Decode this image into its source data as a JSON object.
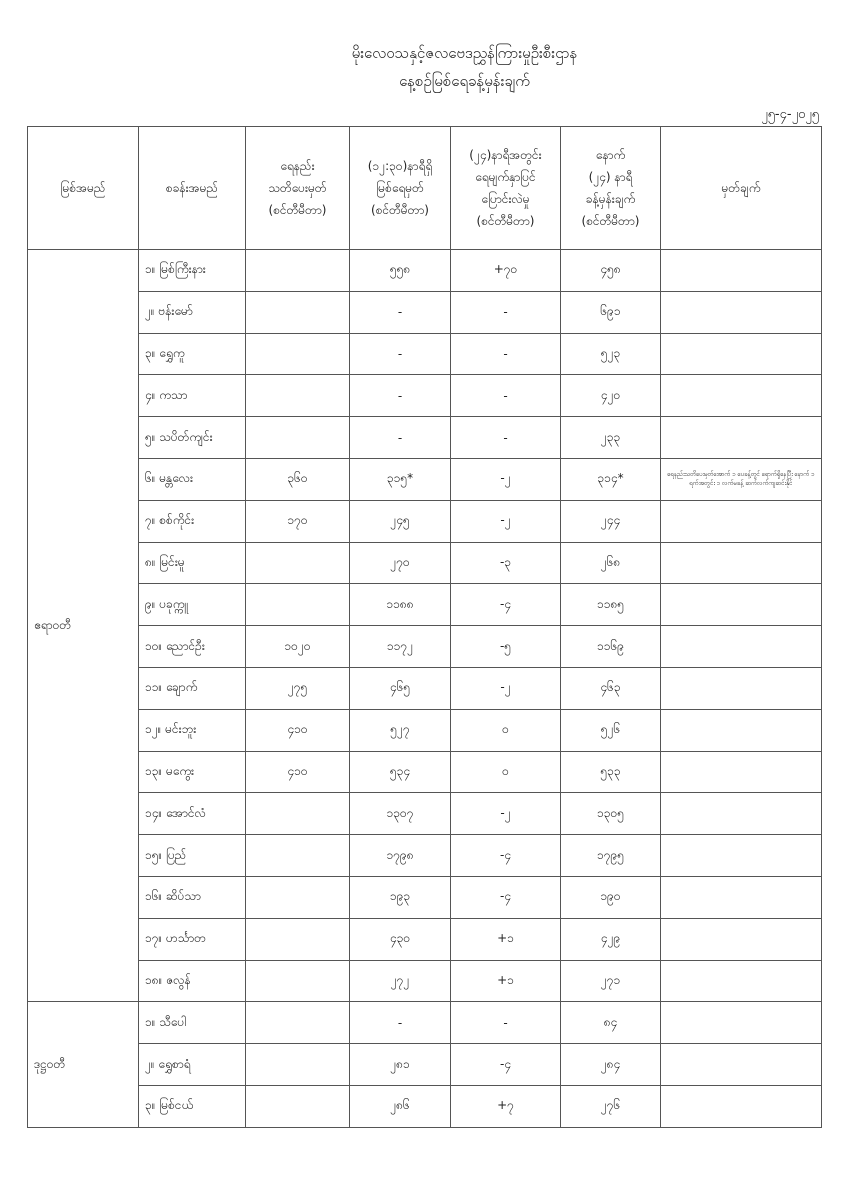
{
  "title_line1": "မိုးလေဝသနှင့်ဇလဗေဒညွှန်ကြားမှုဦးစီးဌာန",
  "title_line2": "နေ့စဉ်မြစ်ရေခန့်မှန်းချက်",
  "date": "၂၅-၄-၂၀၂၅",
  "headers": {
    "river": "မြစ်အမည်",
    "station": "စခန်းအမည်",
    "warning": [
      "ရေနည်း",
      "သတိပေးမှတ်",
      "(စင်တီမီတာ)"
    ],
    "level": [
      "(၁၂:၃၀)နာရီရှိ",
      "မြစ်ရေမှတ်",
      "(စင်တီမီတာ)"
    ],
    "change": [
      "(၂၄)နာရီအတွင်း",
      "ရေမျက်နှာပြင်",
      "ပြောင်းလဲမှု",
      "(စင်တီမီတာ)"
    ],
    "forecast": [
      "နောက်",
      "(၂၄) နာရီ",
      "ခန့်မှန်းချက်",
      "(စင်တီမီတာ)"
    ],
    "remark": "မှတ်ချက်"
  },
  "groups": [
    {
      "river": "ဧရာဝတီ",
      "rows": [
        {
          "station": "၁။ မြစ်ကြီးနား",
          "warning": "",
          "level": "၅၅၈",
          "change": "+၇၀",
          "forecast": "၄၅၈",
          "remark": ""
        },
        {
          "station": "၂။ ဗန်းမော်",
          "warning": "",
          "level": "-",
          "change": "-",
          "forecast": "၆၉၁",
          "remark": ""
        },
        {
          "station": "၃။ ရွှေကူ",
          "warning": "",
          "level": "-",
          "change": "-",
          "forecast": "၅၂၃",
          "remark": ""
        },
        {
          "station": "၄။ ကသာ",
          "warning": "",
          "level": "-",
          "change": "-",
          "forecast": "၄၂၀",
          "remark": ""
        },
        {
          "station": "၅။ သပိတ်ကျင်း",
          "warning": "",
          "level": "-",
          "change": "-",
          "forecast": "၂၃၃",
          "remark": ""
        },
        {
          "station": "၆။ မန္တလေး",
          "warning": "၃၆၀",
          "level": "၃၁၅*",
          "change": "-၂",
          "forecast": "၃၁၄*",
          "remark": "ရေနည်းသတိပေးမှတ်အောက် ၁ ပေခန့်တွင် ရောက်ရှိနေပြီး နောက် ၁ ရက်အတွင်း ၁ လက်မခန့် ဆက်လက်ကျဆင်းနိုင်"
        },
        {
          "station": "၇။ စစ်ကိုင်း",
          "warning": "၁၇၀",
          "level": "၂၄၅",
          "change": "-၂",
          "forecast": "၂၄၄",
          "remark": ""
        },
        {
          "station": "၈။ မြင်းမူ",
          "warning": "",
          "level": "၂၇၀",
          "change": "-၃",
          "forecast": "၂၆၈",
          "remark": ""
        },
        {
          "station": "၉။ ပခုက္ကူ",
          "warning": "",
          "level": "၁၁၈၈",
          "change": "-၄",
          "forecast": "၁၁၈၅",
          "remark": ""
        },
        {
          "station": "၁၀။ ညောင်ဦး",
          "warning": "၁၀၂၀",
          "level": "၁၁၇၂",
          "change": "-၅",
          "forecast": "၁၁၆၉",
          "remark": ""
        },
        {
          "station": "၁၁။ ချောက်",
          "warning": "၂၇၅",
          "level": "၄၆၅",
          "change": "-၂",
          "forecast": "၄၆၃",
          "remark": ""
        },
        {
          "station": "၁၂။ မင်းဘူး",
          "warning": "၄၁၀",
          "level": "၅၂၇",
          "change": "၀",
          "forecast": "၅၂၆",
          "remark": ""
        },
        {
          "station": "၁၃။ မကွေး",
          "warning": "၄၁၀",
          "level": "၅၃၄",
          "change": "၀",
          "forecast": "၅၃၃",
          "remark": ""
        },
        {
          "station": "၁၄။ အောင်လံ",
          "warning": "",
          "level": "၁၃၀၇",
          "change": "-၂",
          "forecast": "၁၃၀၅",
          "remark": ""
        },
        {
          "station": "၁၅။ ပြည်",
          "warning": "",
          "level": "၁၇၉၈",
          "change": "-၄",
          "forecast": "၁၇၉၅",
          "remark": ""
        },
        {
          "station": "၁၆။ ဆိပ်သာ",
          "warning": "",
          "level": "၁၉၃",
          "change": "-၄",
          "forecast": "၁၉၀",
          "remark": ""
        },
        {
          "station": "၁၇။ ဟင်္သာတ",
          "warning": "",
          "level": "၄၃၀",
          "change": "+၁",
          "forecast": "၄၂၉",
          "remark": ""
        },
        {
          "station": "၁၈။ ဇလွန်",
          "warning": "",
          "level": "၂၇၂",
          "change": "+၁",
          "forecast": "၂၇၁",
          "remark": ""
        }
      ]
    },
    {
      "river": "ဒုဋ္ဌဝတီ",
      "rows": [
        {
          "station": "၁။ သီပေါ",
          "warning": "",
          "level": "-",
          "change": "-",
          "forecast": "၈၄",
          "remark": ""
        },
        {
          "station": "၂။ ရွှေစာရံ",
          "warning": "",
          "level": "၂၈၁",
          "change": "-၄",
          "forecast": "၂၈၄",
          "remark": ""
        },
        {
          "station": "၃။ မြစ်ငယ်",
          "warning": "",
          "level": "၂၈၆",
          "change": "+၇",
          "forecast": "၂၇၆",
          "remark": ""
        }
      ]
    }
  ]
}
